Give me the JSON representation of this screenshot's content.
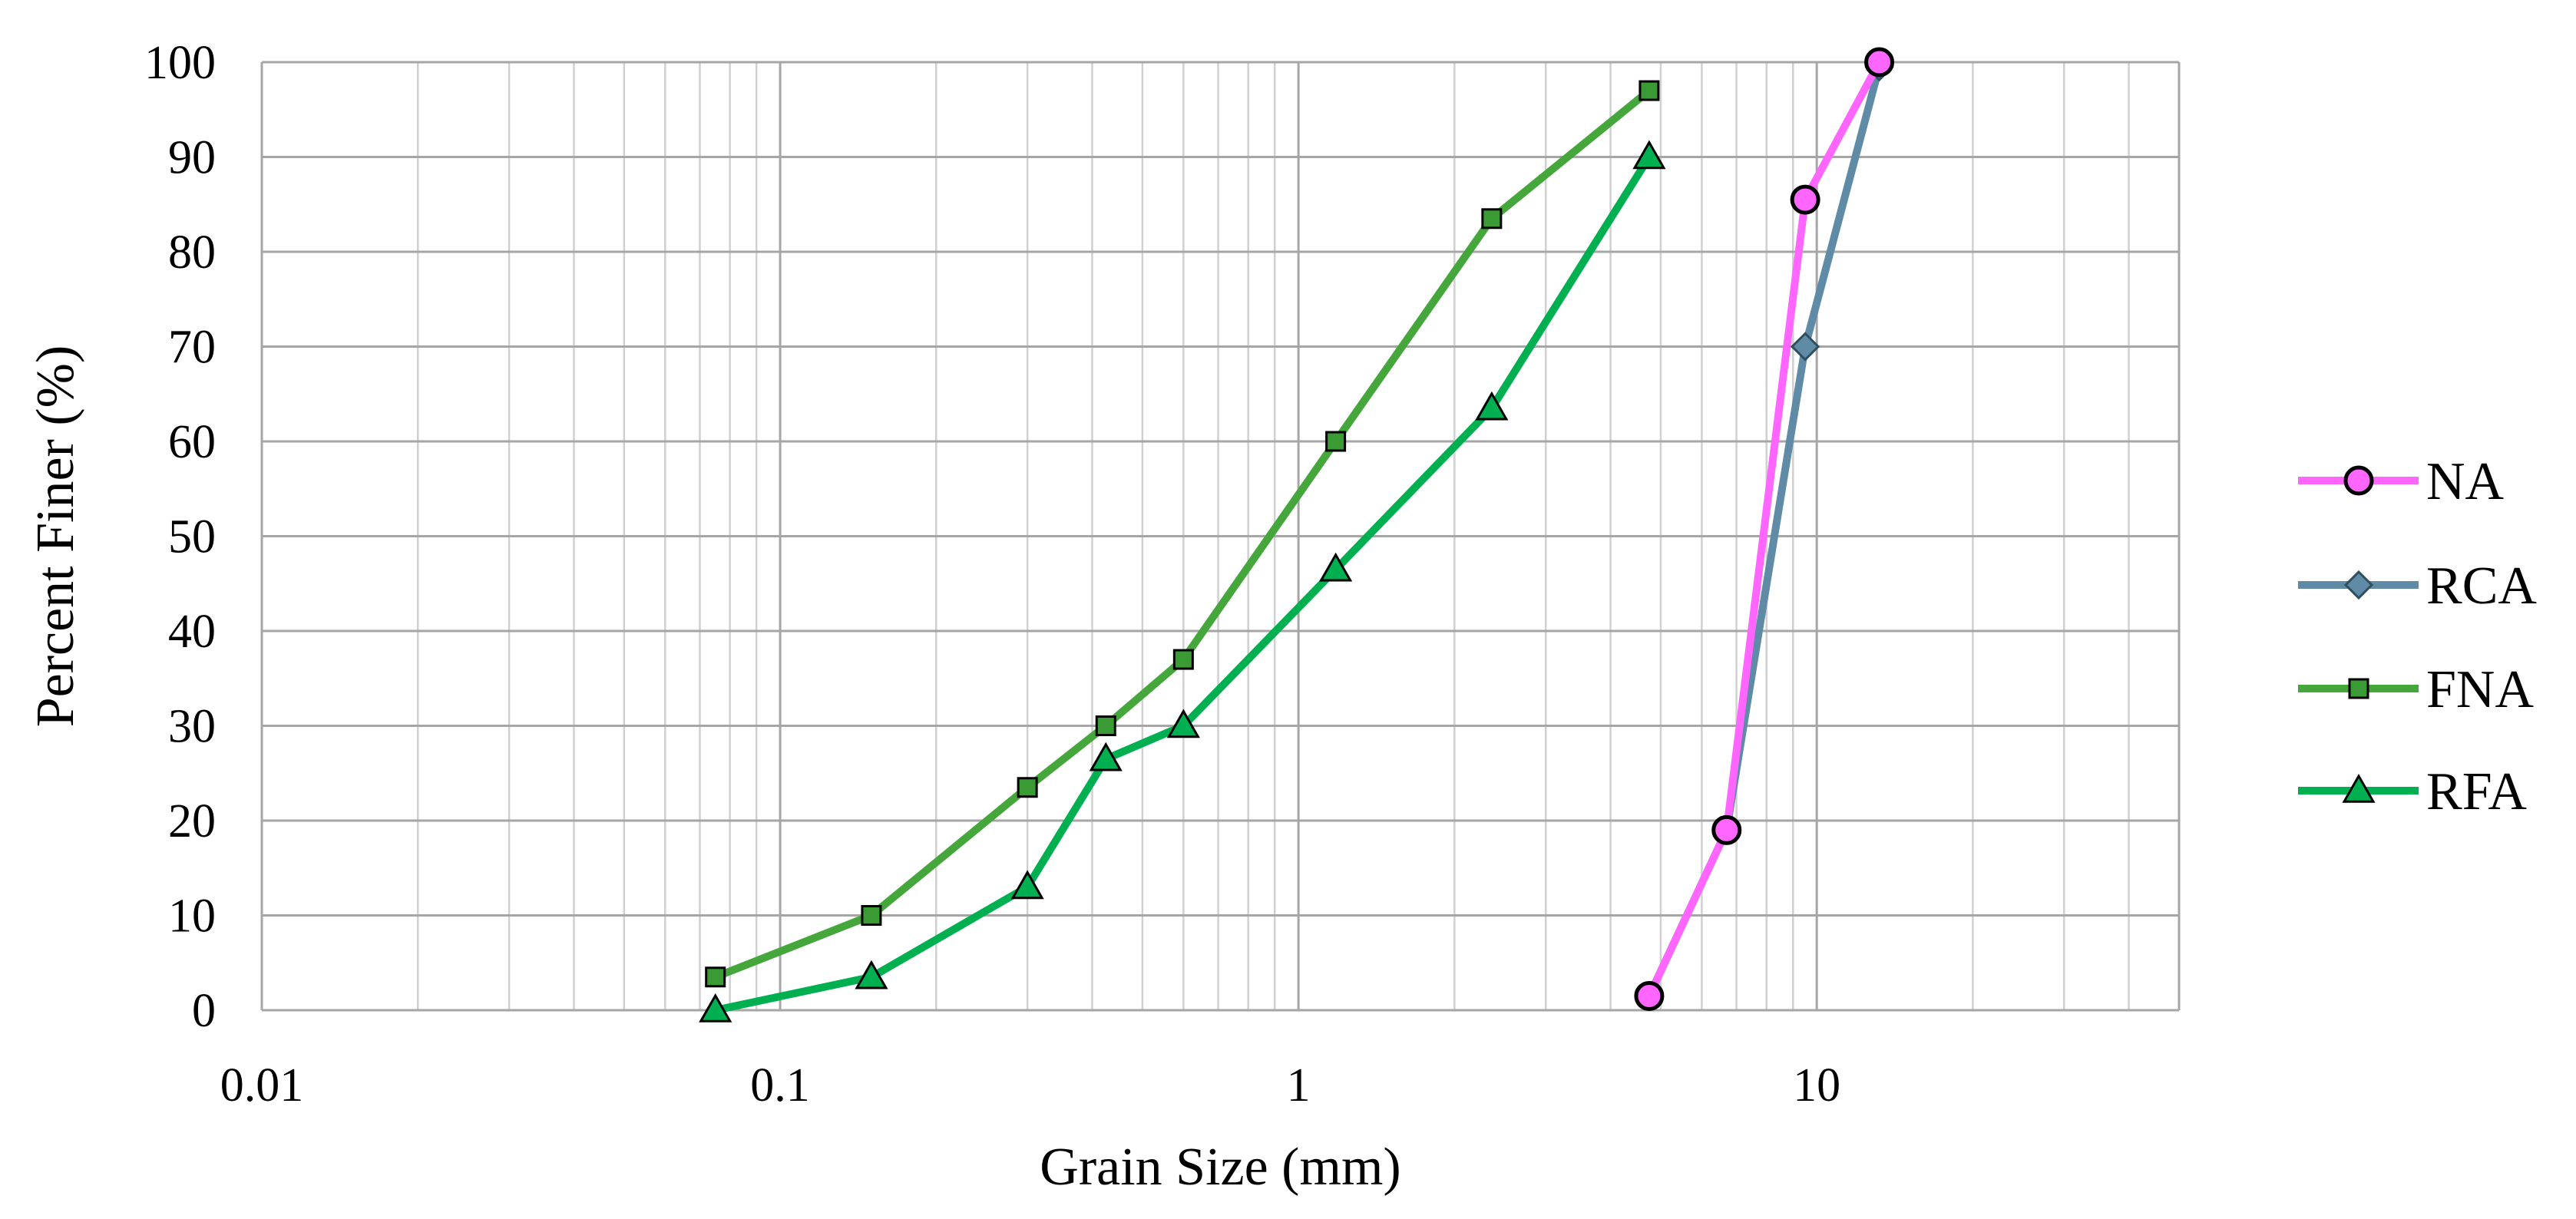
{
  "chart_data": {
    "type": "line",
    "title": "",
    "xlabel": "Grain Size (mm)",
    "ylabel": "Percent Finer (%)",
    "x_scale": "log",
    "xlim": [
      0.01,
      50
    ],
    "ylim": [
      0,
      100
    ],
    "grid": true,
    "legend_position": "right",
    "x_tick_labels": [
      "0.01",
      "0.1",
      "1",
      "10"
    ],
    "y_tick_labels": [
      "0",
      "10",
      "20",
      "30",
      "40",
      "50",
      "60",
      "70",
      "80",
      "90",
      "100"
    ],
    "series": [
      {
        "name": "NA",
        "color": "#ff66ff",
        "marker": "circle",
        "marker_fill": "#ff66ff",
        "x": [
          4.75,
          6.7,
          9.5,
          13.2
        ],
        "y": [
          1.5,
          19,
          85.5,
          100
        ]
      },
      {
        "name": "RCA",
        "color": "#5f8ba6",
        "marker": "diamond",
        "marker_fill": "#5f8ba6",
        "x": [
          4.75,
          6.7,
          9.5,
          13.2
        ],
        "y": [
          1.5,
          19,
          70,
          99.5
        ]
      },
      {
        "name": "FNA",
        "color": "#44a63b",
        "marker": "square",
        "marker_fill": "#3a9a33",
        "x": [
          0.075,
          0.15,
          0.3,
          0.425,
          0.6,
          1.18,
          2.36,
          4.75
        ],
        "y": [
          3.5,
          10,
          23.5,
          30,
          37,
          60,
          83.5,
          97
        ]
      },
      {
        "name": "RFA",
        "color": "#00b050",
        "marker": "triangle",
        "marker_fill": "#00b050",
        "x": [
          0.075,
          0.15,
          0.3,
          0.425,
          0.6,
          1.18,
          2.36,
          4.75
        ],
        "y": [
          0,
          3.5,
          13,
          26.5,
          30,
          46.5,
          63.5,
          90
        ]
      }
    ]
  }
}
